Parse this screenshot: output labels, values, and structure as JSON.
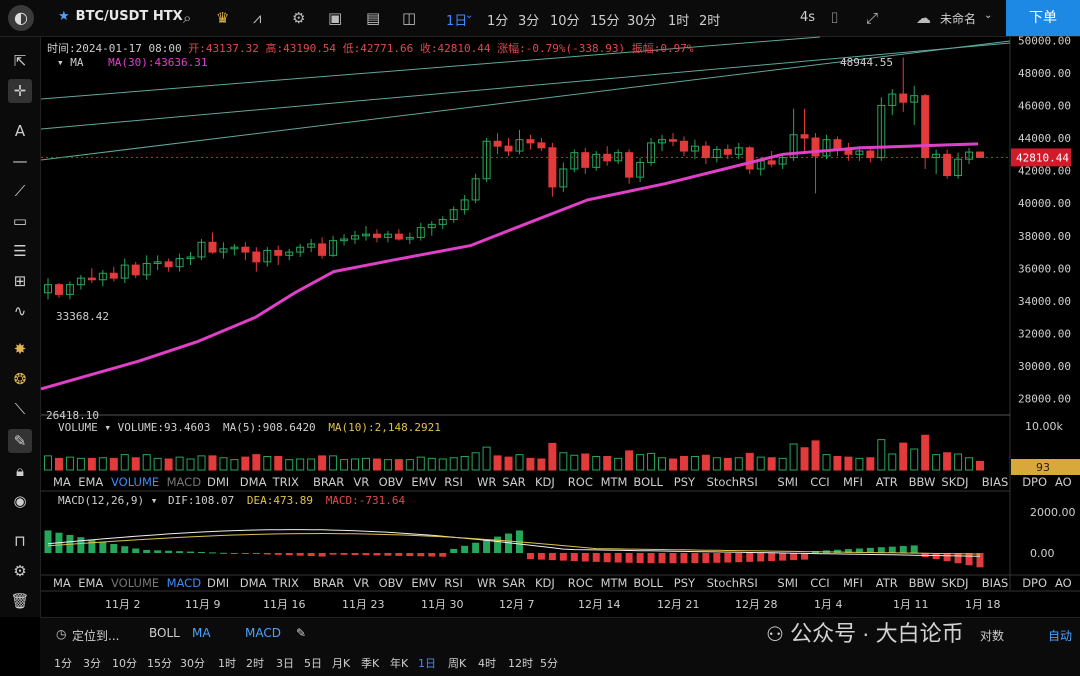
{
  "toolbar": {
    "symbol": "BTC/USDT HTX",
    "timeframes": [
      {
        "label": "1日",
        "active": true
      },
      {
        "label": "1分"
      },
      {
        "label": "3分"
      },
      {
        "label": "10分"
      },
      {
        "label": "15分"
      },
      {
        "label": "30分"
      },
      {
        "label": "1时"
      },
      {
        "label": "2时"
      }
    ],
    "refresh": "4s",
    "layout_name": "未命名",
    "order_button": "下单",
    "icons": [
      "search-icon",
      "crown-icon",
      "indicator-icon",
      "gear-icon",
      "image-icon",
      "save-icon",
      "layout-icon",
      "camera-icon",
      "fullscreen-icon",
      "cloud-icon"
    ]
  },
  "left_tools": [
    "cursor-icon",
    "crosshair-icon",
    "text-icon",
    "hline-icon",
    "trendline-icon",
    "rect-icon",
    "channel-icon",
    "grid-icon",
    "wave-icon",
    "fib-icon",
    "fib2-icon",
    "ruler-icon",
    "pen-icon",
    "lock-icon",
    "eye-icon",
    "bookmark-icon",
    "settings-icon",
    "trash-icon"
  ],
  "ohlc": {
    "time": "时间:2024-01-17 08:00",
    "open": "开:43137.32",
    "high": "高:43190.54",
    "low": "低:42771.66",
    "close": "收:42810.44",
    "change": "涨幅:-0.79%(-338.93)",
    "amplitude": "振幅:0.97%"
  },
  "ma_label": "MA",
  "ma_value": "MA(30):43636.31",
  "volume_panel": {
    "label": "VOLUME",
    "volume": "VOLUME:93.4603",
    "ma5": "MA(5):908.6420",
    "ma10": "MA(10):2,148.2921",
    "axis_top": "10.00k",
    "current": "93"
  },
  "macd_panel": {
    "label": "MACD(12,26,9)",
    "dif": "DIF:108.07",
    "dea": "DEA:473.89",
    "macd": "MACD:-731.64",
    "ticks": [
      "2000.00",
      "0.00"
    ]
  },
  "indicator_tabs": [
    "MA",
    "EMA",
    "VOLUME",
    "MACD",
    "DMI",
    "DMA",
    "TRIX",
    "BRAR",
    "VR",
    "OBV",
    "EMV",
    "RSI",
    "WR",
    "SAR",
    "KDJ",
    "ROC",
    "MTM",
    "BOLL",
    "PSY",
    "StochRSI",
    "SMI",
    "CCI",
    "MFI",
    "ATR",
    "BBW",
    "SKDJ",
    "BIAS",
    "DPO",
    "AO"
  ],
  "bottom": {
    "locate": "定位到...",
    "boll": "BOLL",
    "ma": "MA",
    "macd": "MACD",
    "auto": "自动",
    "intervals": [
      "1分",
      "3分",
      "10分",
      "15分",
      "30分",
      "1时",
      "2时",
      "3日",
      "5日",
      "月K",
      "季K",
      "年K",
      "1日",
      "周K",
      "4时",
      "12时",
      "5分"
    ],
    "active_interval": "1日",
    "watermark": "公众号 · 大白论币",
    "log_label": "对数"
  },
  "chart_data": {
    "type": "candlestick",
    "price_ticks": [
      "50000.00",
      "48000.00",
      "46000.00",
      "44000.00",
      "42000.00",
      "40000.00",
      "38000.00",
      "36000.00",
      "34000.00",
      "32000.00",
      "30000.00",
      "28000.00"
    ],
    "current_price": "42810.44",
    "high_label": "48944.55",
    "low_label": "33368.42",
    "min_label": "26418.10",
    "x_labels": [
      "11月 2",
      "11月 9",
      "11月 16",
      "11月 23",
      "11月 30",
      "12月 7",
      "12月 14",
      "12月 21",
      "12月 28",
      "1月 4",
      "1月 11",
      "1月 18"
    ],
    "candles": [
      [
        34500,
        35400,
        34100,
        35000
      ],
      [
        35000,
        35100,
        34200,
        34400
      ],
      [
        34400,
        35200,
        34100,
        35000
      ],
      [
        35000,
        35600,
        34700,
        35400
      ],
      [
        35400,
        36000,
        35100,
        35300
      ],
      [
        35300,
        35900,
        34900,
        35700
      ],
      [
        35700,
        36100,
        35200,
        35400
      ],
      [
        35400,
        36600,
        35100,
        36200
      ],
      [
        36200,
        36400,
        35400,
        35600
      ],
      [
        35600,
        36800,
        35300,
        36300
      ],
      [
        36300,
        36800,
        35900,
        36400
      ],
      [
        36400,
        36600,
        35800,
        36100
      ],
      [
        36100,
        36900,
        35800,
        36600
      ],
      [
        36600,
        37000,
        36200,
        36700
      ],
      [
        36700,
        37800,
        36500,
        37600
      ],
      [
        37600,
        38200,
        36900,
        37000
      ],
      [
        37000,
        37600,
        36600,
        37200
      ],
      [
        37200,
        37500,
        36800,
        37300
      ],
      [
        37300,
        37600,
        36500,
        37000
      ],
      [
        37000,
        37300,
        35800,
        36400
      ],
      [
        36400,
        37300,
        36100,
        37100
      ],
      [
        37100,
        37400,
        36200,
        36800
      ],
      [
        36800,
        37200,
        36500,
        37000
      ],
      [
        37000,
        37500,
        36700,
        37300
      ],
      [
        37300,
        37800,
        37000,
        37500
      ],
      [
        37500,
        37900,
        36600,
        36800
      ],
      [
        36800,
        38000,
        36700,
        37700
      ],
      [
        37700,
        38100,
        37400,
        37800
      ],
      [
        37800,
        38300,
        37500,
        38000
      ],
      [
        38000,
        38600,
        37700,
        38100
      ],
      [
        38100,
        38400,
        37600,
        37900
      ],
      [
        37900,
        38300,
        37600,
        38100
      ],
      [
        38100,
        38400,
        37700,
        37800
      ],
      [
        37800,
        38200,
        37500,
        37900
      ],
      [
        37900,
        38800,
        37700,
        38500
      ],
      [
        38500,
        38900,
        38000,
        38700
      ],
      [
        38700,
        39200,
        38400,
        39000
      ],
      [
        39000,
        39800,
        38800,
        39600
      ],
      [
        39600,
        40500,
        39300,
        40200
      ],
      [
        40200,
        41800,
        40000,
        41500
      ],
      [
        41500,
        44000,
        41300,
        43800
      ],
      [
        43800,
        44300,
        43000,
        43500
      ],
      [
        43500,
        44000,
        42900,
        43200
      ],
      [
        43200,
        44500,
        43000,
        43900
      ],
      [
        43900,
        44200,
        43300,
        43700
      ],
      [
        43700,
        44000,
        43200,
        43400
      ],
      [
        43400,
        43700,
        40400,
        41000
      ],
      [
        41000,
        42500,
        40700,
        42100
      ],
      [
        42100,
        43300,
        41900,
        43100
      ],
      [
        43100,
        43400,
        41800,
        42200
      ],
      [
        42200,
        43200,
        42000,
        43000
      ],
      [
        43000,
        43500,
        42300,
        42600
      ],
      [
        42600,
        43300,
        42400,
        43100
      ],
      [
        43100,
        43300,
        41200,
        41600
      ],
      [
        41600,
        42800,
        41300,
        42500
      ],
      [
        42500,
        44000,
        42300,
        43700
      ],
      [
        43700,
        44200,
        43200,
        43900
      ],
      [
        43900,
        44300,
        43500,
        43800
      ],
      [
        43800,
        44100,
        42900,
        43200
      ],
      [
        43200,
        43900,
        42700,
        43500
      ],
      [
        43500,
        43800,
        42400,
        42800
      ],
      [
        42800,
        43500,
        42500,
        43300
      ],
      [
        43300,
        43600,
        42700,
        43000
      ],
      [
        43000,
        43700,
        42700,
        43400
      ],
      [
        43400,
        43500,
        41800,
        42100
      ],
      [
        42100,
        42800,
        41700,
        42600
      ],
      [
        42600,
        43200,
        42200,
        42400
      ],
      [
        42400,
        43000,
        42100,
        42800
      ],
      [
        42800,
        45800,
        42600,
        44200
      ],
      [
        44200,
        45800,
        43200,
        44000
      ],
      [
        44000,
        44300,
        40600,
        42900
      ],
      [
        42900,
        44200,
        42700,
        43900
      ],
      [
        43900,
        44100,
        42900,
        43300
      ],
      [
        43300,
        43700,
        42600,
        43000
      ],
      [
        43000,
        43500,
        42600,
        43200
      ],
      [
        43200,
        43500,
        42500,
        42800
      ],
      [
        42800,
        46500,
        42600,
        46000
      ],
      [
        46000,
        47000,
        45400,
        46700
      ],
      [
        46700,
        48944,
        45600,
        46200
      ],
      [
        46200,
        47200,
        44800,
        46600
      ],
      [
        46600,
        46700,
        42100,
        42800
      ],
      [
        42800,
        43300,
        41800,
        43000
      ],
      [
        43000,
        43300,
        41500,
        41700
      ],
      [
        41700,
        43100,
        41500,
        42700
      ],
      [
        42700,
        43400,
        42400,
        43137
      ],
      [
        43137,
        43190,
        42771,
        42810
      ]
    ],
    "ma30_points": [
      [
        0,
        28600
      ],
      [
        25,
        30300
      ],
      [
        40,
        31500
      ],
      [
        55,
        33000
      ],
      [
        65,
        34500
      ],
      [
        75,
        35800
      ],
      [
        90,
        36500
      ],
      [
        110,
        37400
      ],
      [
        125,
        38800
      ],
      [
        140,
        40200
      ],
      [
        160,
        41200
      ],
      [
        175,
        42100
      ],
      [
        190,
        43000
      ],
      [
        210,
        43400
      ],
      [
        235,
        43600
      ],
      [
        240,
        43636
      ]
    ]
  }
}
